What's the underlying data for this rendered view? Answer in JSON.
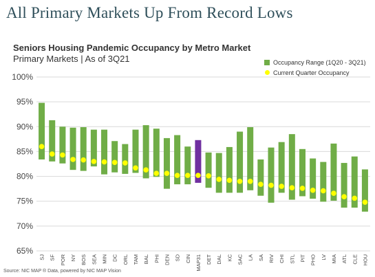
{
  "headline": "All Primary Markets Up From Record Lows",
  "source_text": "Source: NIC MAP ® Data, powered by NIC MAP Vision",
  "chart_data": {
    "type": "bar",
    "title": "Seniors Housing Pandemic Occupancy by Metro Market",
    "subtitle": "Primary Markets | As of 3Q21",
    "xlabel": "",
    "ylabel": "",
    "ylim": [
      65,
      100
    ],
    "yticks": [
      65,
      70,
      75,
      80,
      85,
      90,
      95,
      100
    ],
    "ytick_format": "percent",
    "grid": true,
    "legend_position": "top-right",
    "categories": [
      "SJ",
      "SF",
      "POR",
      "NY",
      "BOS",
      "SEA",
      "MIN",
      "DC",
      "ORL",
      "TAM",
      "BAL",
      "PHI",
      "DEN",
      "SD",
      "CIN",
      "MAP31",
      "DET",
      "DAL",
      "KC",
      "SAC",
      "LA",
      "SA",
      "RIV",
      "CHI",
      "STL",
      "PIT",
      "PHO",
      "LV",
      "MIA",
      "ATL",
      "CLE",
      "HOU"
    ],
    "highlight_category": "MAP31",
    "series": [
      {
        "name": "Occupancy  Range (1Q20 - 3Q21)",
        "type": "range",
        "color": "#70ad47",
        "highlight_color": "#7030a0",
        "low": [
          83.4,
          83.0,
          82.6,
          81.3,
          81.1,
          82.0,
          80.4,
          80.8,
          80.5,
          80.7,
          79.6,
          79.9,
          77.5,
          78.4,
          78.4,
          78.7,
          77.7,
          76.7,
          76.7,
          76.7,
          77.2,
          76.1,
          74.7,
          76.7,
          75.3,
          76.0,
          75.5,
          74.9,
          75.1,
          73.7,
          73.7,
          72.9
        ],
        "high": [
          94.8,
          91.3,
          90.0,
          89.8,
          89.9,
          89.4,
          89.4,
          87.1,
          86.5,
          89.4,
          90.3,
          89.6,
          87.7,
          88.3,
          86.0,
          87.3,
          84.8,
          84.7,
          85.9,
          89.0,
          89.9,
          83.4,
          85.8,
          86.9,
          88.5,
          85.5,
          83.6,
          82.9,
          86.6,
          82.7,
          84.0,
          81.4
        ]
      },
      {
        "name": "Current Quarter Occupancy",
        "type": "point",
        "color": "#ffff00",
        "values": [
          86.0,
          84.5,
          84.3,
          83.4,
          83.3,
          83.0,
          82.9,
          82.8,
          82.7,
          81.7,
          81.3,
          80.6,
          80.6,
          80.2,
          80.2,
          80.2,
          80.1,
          79.4,
          79.2,
          79.0,
          79.0,
          78.4,
          78.2,
          78.0,
          77.7,
          77.6,
          77.2,
          77.1,
          76.6,
          75.9,
          75.6,
          74.8
        ]
      }
    ]
  }
}
